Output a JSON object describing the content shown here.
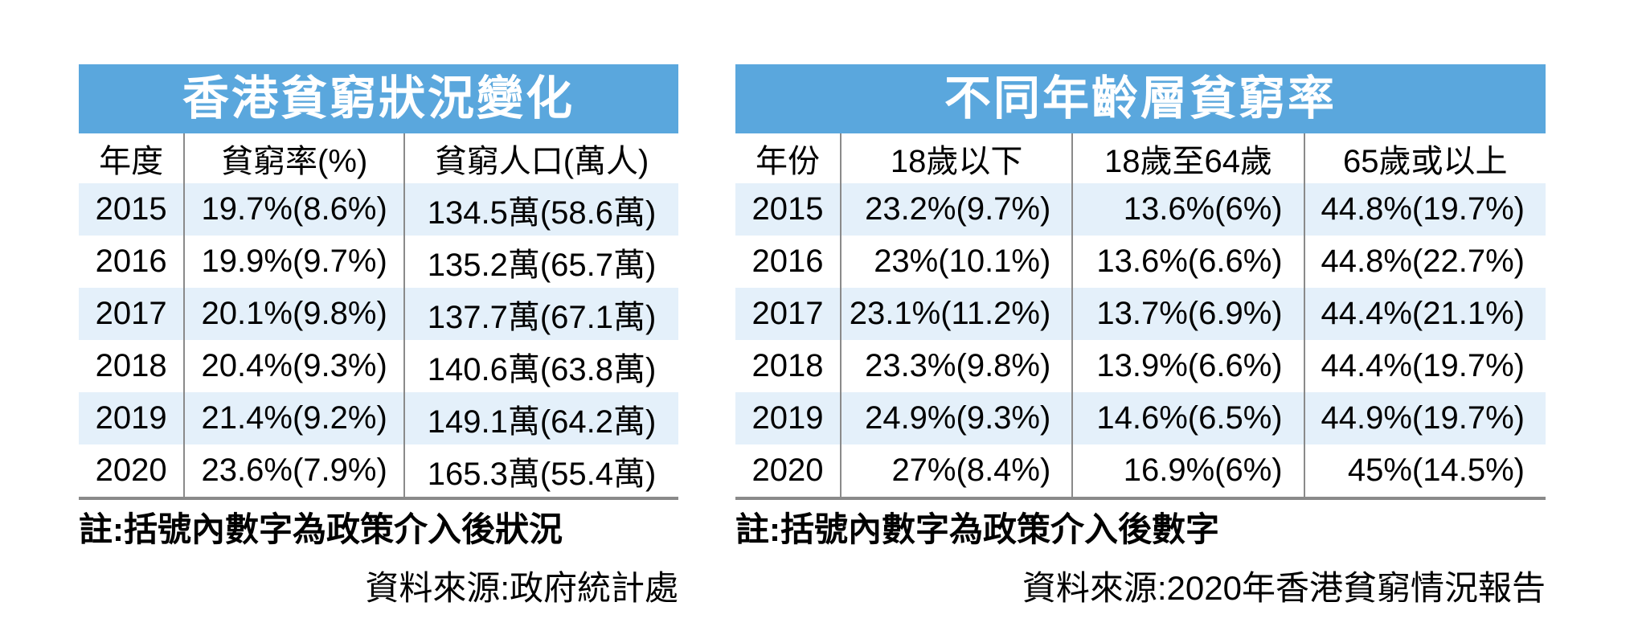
{
  "colors": {
    "title_bar_blue": "#5AA7DD",
    "shaded_row_blue": "#E4F0FA",
    "grid_line_gray": "#8a8a8a",
    "title_text": "#ffffff",
    "body_text": "#000000"
  },
  "chart_data": [
    {
      "type": "table",
      "title": "香港貧窮狀況變化",
      "columns": [
        "年度",
        "貧窮率(%)",
        "貧窮人口(萬人)"
      ],
      "rows": [
        [
          "2015",
          "19.7%(8.6%)",
          "134.5萬(58.6萬)"
        ],
        [
          "2016",
          "19.9%(9.7%)",
          "135.2萬(65.7萬)"
        ],
        [
          "2017",
          "20.1%(9.8%)",
          "137.7萬(67.1萬)"
        ],
        [
          "2018",
          "20.4%(9.3%)",
          "140.6萬(63.8萬)"
        ],
        [
          "2019",
          "21.4%(9.2%)",
          "149.1萬(64.2萬)"
        ],
        [
          "2020",
          "23.6%(7.9%)",
          "165.3萬(55.4萬)"
        ]
      ],
      "note": "註:括號內數字為政策介入後狀況",
      "source": "資料來源:政府統計處",
      "layout": {
        "shaded_rows": [
          "2015",
          "2017",
          "2019"
        ],
        "grid": "vertical-separators-and-bottom-rule"
      }
    },
    {
      "type": "table",
      "title": "不同年齡層貧窮率",
      "columns": [
        "年份",
        "18歲以下",
        "18歲至64歲",
        "65歲或以上"
      ],
      "rows": [
        [
          "2015",
          "23.2%(9.7%)",
          "13.6%(6%)",
          "44.8%(19.7%)"
        ],
        [
          "2016",
          "23%(10.1%)",
          "13.6%(6.6%)",
          "44.8%(22.7%)"
        ],
        [
          "2017",
          "23.1%(11.2%)",
          "13.7%(6.9%)",
          "44.4%(21.1%)"
        ],
        [
          "2018",
          "23.3%(9.8%)",
          "13.9%(6.6%)",
          "44.4%(19.7%)"
        ],
        [
          "2019",
          "24.9%(9.3%)",
          "14.6%(6.5%)",
          "44.9%(19.7%)"
        ],
        [
          "2020",
          "27%(8.4%)",
          "16.9%(6%)",
          "45%(14.5%)"
        ]
      ],
      "note": "註:括號內數字為政策介入後數字",
      "source": "資料來源:2020年香港貧窮情況報告",
      "layout": {
        "shaded_rows": [
          "2015",
          "2017",
          "2019"
        ],
        "grid": "vertical-separators-and-bottom-rule"
      }
    }
  ]
}
